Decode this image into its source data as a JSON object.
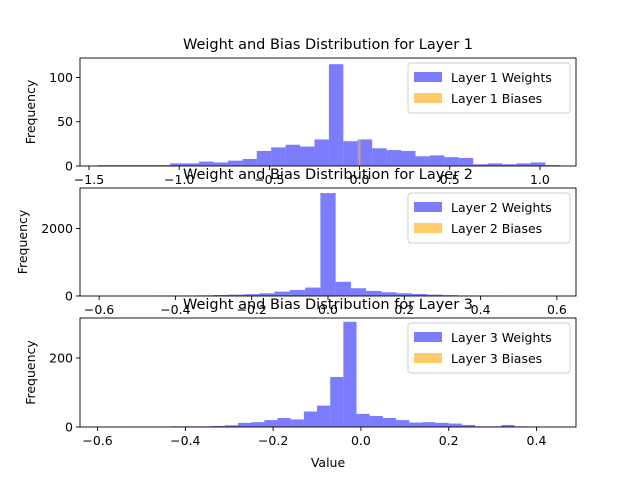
{
  "chart_data": [
    {
      "type": "bar",
      "title": "Weight and Bias Distribution for Layer 1",
      "xlabel": "",
      "ylabel": "Frequency",
      "xlim": [
        -1.55,
        1.2
      ],
      "ylim": [
        0,
        122
      ],
      "xticks": [
        -1.5,
        -1.0,
        -0.5,
        0.0,
        0.5,
        1.0
      ],
      "xtick_labels": [
        "−1.5",
        "−1.0",
        "−0.5",
        "0.0",
        "0.5",
        "1.0"
      ],
      "yticks": [
        0,
        50,
        100
      ],
      "ytick_labels": [
        "0",
        "50",
        "100"
      ],
      "legend_position": "top-right",
      "series": [
        {
          "name": "Layer 1 Weights",
          "color": "#4444ff",
          "bin_edges": [
            -1.45,
            -1.37,
            -1.29,
            -1.21,
            -1.13,
            -1.05,
            -0.97,
            -0.89,
            -0.81,
            -0.73,
            -0.65,
            -0.57,
            -0.49,
            -0.41,
            -0.33,
            -0.25,
            -0.17,
            -0.09,
            -0.01,
            0.07,
            0.15,
            0.23,
            0.31,
            0.39,
            0.47,
            0.55,
            0.63,
            0.71,
            0.79,
            0.87,
            0.95,
            1.03,
            1.11
          ],
          "counts": [
            1,
            1,
            1,
            1,
            1,
            3,
            3,
            5,
            4,
            6,
            8,
            17,
            21,
            24,
            22,
            30,
            115,
            28,
            30,
            20,
            18,
            17,
            11,
            12,
            10,
            9,
            2,
            3,
            2,
            3,
            4,
            1
          ]
        },
        {
          "name": "Layer 1 Biases",
          "color": "#ffb52e",
          "bin_edges": [
            -0.005,
            0.005
          ],
          "counts": [
            30
          ]
        }
      ]
    },
    {
      "type": "bar",
      "title": "Weight and Bias Distribution for Layer 2",
      "xlabel": "",
      "ylabel": "Frequency",
      "xlim": [
        -0.65,
        0.65
      ],
      "ylim": [
        0,
        3200
      ],
      "xticks": [
        -0.6,
        -0.4,
        -0.2,
        0.0,
        0.2,
        0.4,
        0.6
      ],
      "xtick_labels": [
        "−0.6",
        "−0.4",
        "−0.2",
        "0.0",
        "0.2",
        "0.4",
        "0.6"
      ],
      "yticks": [
        0,
        2000
      ],
      "ytick_labels": [
        "0",
        "2000"
      ],
      "legend_position": "top-right",
      "series": [
        {
          "name": "Layer 2 Weights",
          "color": "#4444ff",
          "bin_edges": [
            -0.46,
            -0.42,
            -0.38,
            -0.34,
            -0.3,
            -0.26,
            -0.22,
            -0.18,
            -0.14,
            -0.1,
            -0.06,
            -0.02,
            0.02,
            0.06,
            0.1,
            0.14,
            0.18,
            0.22,
            0.26,
            0.3,
            0.34,
            0.38,
            0.42,
            0.46
          ],
          "counts": [
            5,
            10,
            15,
            20,
            30,
            40,
            55,
            80,
            130,
            180,
            250,
            3050,
            420,
            230,
            150,
            110,
            80,
            60,
            40,
            25,
            15,
            10,
            5
          ]
        },
        {
          "name": "Layer 2 Biases",
          "color": "#ffb52e",
          "bin_edges": [
            -0.005,
            0.005
          ],
          "counts": [
            0
          ]
        }
      ]
    },
    {
      "type": "bar",
      "title": "Weight and Bias Distribution for Layer 3",
      "xlabel": "Value",
      "ylabel": "Frequency",
      "xlim": [
        -0.64,
        0.49
      ],
      "ylim": [
        0,
        316
      ],
      "xticks": [
        -0.6,
        -0.4,
        -0.2,
        0.0,
        0.2,
        0.4
      ],
      "xtick_labels": [
        "−0.6",
        "−0.4",
        "−0.2",
        "0.0",
        "0.2",
        "0.4"
      ],
      "yticks": [
        0,
        200
      ],
      "ytick_labels": [
        "0",
        "200"
      ],
      "legend_position": "top-right",
      "series": [
        {
          "name": "Layer 3 Weights",
          "color": "#4444ff",
          "bin_edges": [
            -0.61,
            -0.58,
            -0.55,
            -0.52,
            -0.49,
            -0.46,
            -0.43,
            -0.4,
            -0.37,
            -0.34,
            -0.31,
            -0.28,
            -0.25,
            -0.22,
            -0.19,
            -0.16,
            -0.13,
            -0.1,
            -0.07,
            -0.04,
            -0.01,
            0.02,
            0.05,
            0.08,
            0.11,
            0.14,
            0.17,
            0.2,
            0.23,
            0.26,
            0.29,
            0.32,
            0.35,
            0.38,
            0.41,
            0.44
          ],
          "counts": [
            0,
            0,
            0,
            1,
            1,
            1,
            2,
            2,
            2,
            3,
            5,
            12,
            14,
            20,
            26,
            22,
            45,
            62,
            145,
            305,
            38,
            32,
            26,
            20,
            13,
            14,
            12,
            10,
            6,
            2,
            2,
            6,
            2,
            1,
            1
          ]
        },
        {
          "name": "Layer 3 Biases",
          "color": "#ffb52e",
          "bin_edges": [
            -0.005,
            0.005
          ],
          "counts": [
            0
          ]
        }
      ]
    }
  ]
}
